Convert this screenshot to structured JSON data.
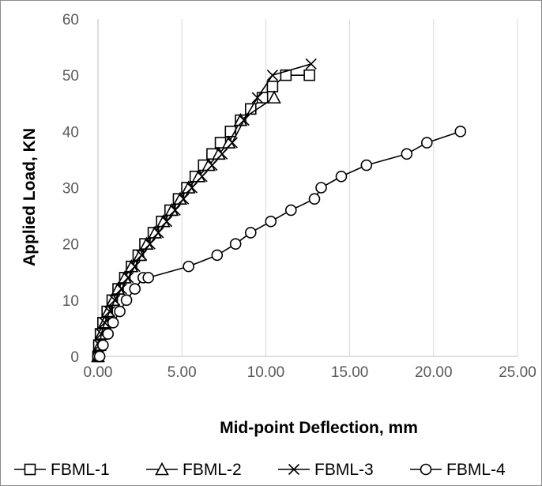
{
  "chart_data": {
    "type": "scatter",
    "title": "",
    "xlabel": "Mid-point Deflection, mm",
    "ylabel": "Applied Load, KN",
    "xlim": [
      0,
      25
    ],
    "ylim": [
      0,
      60
    ],
    "x_ticks": [
      "0.00",
      "5.00",
      "10.00",
      "15.00",
      "20.00",
      "25.00"
    ],
    "y_ticks": [
      "0",
      "10",
      "20",
      "30",
      "40",
      "50",
      "60"
    ],
    "grid": "vertical",
    "legend_position": "bottom",
    "series": [
      {
        "name": "FBML-1",
        "marker": "square",
        "x": [
          0.0,
          0.05,
          0.15,
          0.3,
          0.55,
          0.85,
          1.2,
          1.6,
          2.0,
          2.4,
          2.8,
          3.3,
          3.8,
          4.3,
          4.8,
          5.3,
          5.8,
          6.3,
          6.8,
          7.3,
          7.9,
          8.5,
          9.1,
          9.8,
          10.4,
          11.2,
          12.6
        ],
        "y": [
          0,
          2,
          4,
          6,
          8,
          10,
          12,
          14,
          16,
          18,
          20,
          22,
          24,
          26,
          28,
          30,
          32,
          34,
          36,
          38,
          40,
          42,
          44,
          46,
          48,
          50,
          50
        ]
      },
      {
        "name": "FBML-2",
        "marker": "triangle",
        "x": [
          0.0,
          0.1,
          0.2,
          0.4,
          0.6,
          0.9,
          1.2,
          1.6,
          2.0,
          2.5,
          2.9,
          3.4,
          3.9,
          4.4,
          4.9,
          5.4,
          6.0,
          6.6,
          7.2,
          7.8,
          8.5,
          10.5
        ],
        "y": [
          0,
          2,
          4,
          6,
          8,
          10,
          12,
          14,
          16,
          18,
          20,
          22,
          24,
          26,
          28,
          30,
          32,
          34,
          36,
          38,
          42,
          46
        ]
      },
      {
        "name": "FBML-3",
        "marker": "x",
        "x": [
          0.0,
          0.1,
          0.2,
          0.4,
          0.7,
          1.0,
          1.4,
          1.8,
          2.2,
          2.6,
          3.1,
          3.6,
          4.1,
          4.6,
          5.1,
          5.6,
          6.2,
          6.8,
          7.4,
          8.0,
          8.7,
          9.5,
          10.4,
          12.7
        ],
        "y": [
          0,
          2,
          4,
          6,
          8,
          10,
          12,
          14,
          16,
          18,
          20,
          22,
          24,
          26,
          28,
          30,
          32,
          34,
          36,
          38,
          42,
          46,
          50,
          52
        ]
      },
      {
        "name": "FBML-4",
        "marker": "circle",
        "x": [
          0.0,
          0.1,
          0.3,
          0.6,
          0.9,
          1.3,
          1.7,
          2.2,
          2.7,
          3.0,
          5.4,
          7.1,
          8.2,
          9.1,
          10.3,
          11.5,
          12.9,
          13.3,
          14.5,
          16.0,
          18.4,
          19.6,
          21.6
        ],
        "y": [
          0,
          0,
          2,
          4,
          6,
          8,
          10,
          12,
          14,
          14,
          16,
          18,
          20,
          22,
          24,
          26,
          28,
          30,
          32,
          34,
          36,
          38,
          40
        ]
      }
    ]
  }
}
